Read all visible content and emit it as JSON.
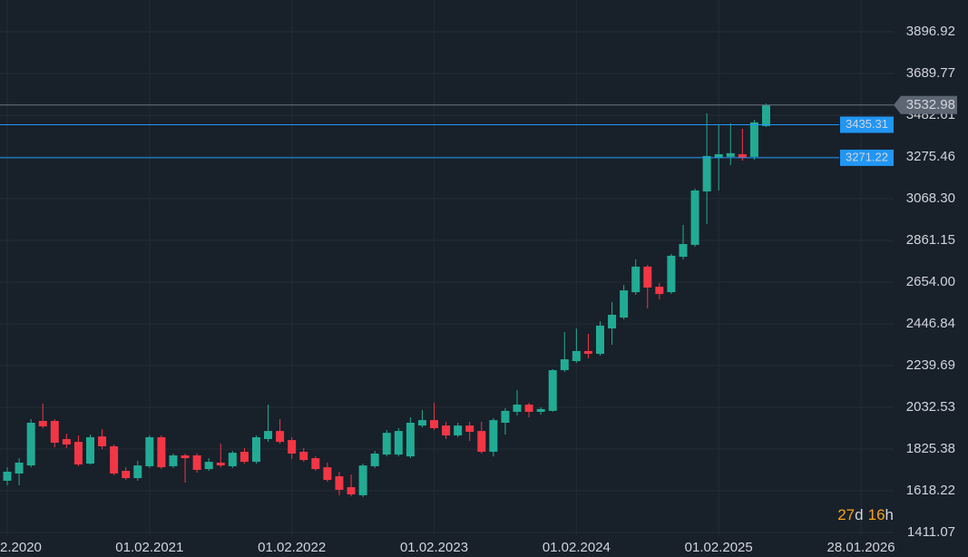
{
  "chart_data": {
    "type": "candlestick",
    "up_color": "#22ab94",
    "down_color": "#f23645",
    "open": [
      1668,
      1704,
      1744,
      1965,
      1965,
      1875,
      1861,
      1753,
      1888,
      1839,
      1717,
      1681,
      1740,
      1884,
      1740,
      1794,
      1794,
      1726,
      1758,
      1740,
      1812,
      1762,
      1875,
      1915,
      1870,
      1812,
      1780,
      1735,
      1690,
      1636,
      1596,
      1740,
      1798,
      1798,
      1789,
      1942,
      1969,
      1942,
      1893,
      1942,
      1915,
      1812,
      1956,
      2010,
      2046,
      2010,
      2015,
      2217,
      2262,
      2312,
      2298,
      2424,
      2478,
      2604,
      2731,
      2631,
      2604,
      2780,
      2839,
      3104,
      3271,
      3276,
      3289,
      3276,
      3429
    ],
    "high": [
      1735,
      1780,
      1974,
      2051,
      1974,
      1902,
      1893,
      1897,
      1924,
      1848,
      1735,
      1767,
      1893,
      1893,
      1803,
      1803,
      1803,
      1780,
      1852,
      1816,
      1830,
      1893,
      2046,
      1974,
      1884,
      1830,
      1789,
      1758,
      1713,
      1699,
      1753,
      1816,
      1920,
      1929,
      1983,
      2019,
      2055,
      1961,
      1956,
      1961,
      1961,
      1979,
      2028,
      2118,
      2055,
      2033,
      2222,
      2406,
      2424,
      2397,
      2460,
      2555,
      2640,
      2767,
      2740,
      2649,
      2794,
      2938,
      3118,
      3492,
      3433,
      3442,
      3415,
      3460,
      3541
    ],
    "low": [
      1645,
      1645,
      1735,
      1929,
      1834,
      1830,
      1740,
      1749,
      1825,
      1695,
      1672,
      1668,
      1731,
      1726,
      1731,
      1659,
      1708,
      1717,
      1735,
      1731,
      1753,
      1753,
      1861,
      1852,
      1776,
      1762,
      1717,
      1663,
      1596,
      1591,
      1587,
      1731,
      1789,
      1789,
      1780,
      1933,
      1920,
      1875,
      1884,
      1866,
      1803,
      1789,
      1897,
      1992,
      1983,
      1996,
      2010,
      2208,
      2253,
      2276,
      2289,
      2343,
      2469,
      2591,
      2524,
      2568,
      2595,
      2767,
      2830,
      2942,
      3109,
      3235,
      3257,
      3262,
      3424
    ],
    "close": [
      1713,
      1758,
      1956,
      1938,
      1857,
      1848,
      1749,
      1884,
      1839,
      1704,
      1681,
      1744,
      1884,
      1735,
      1794,
      1780,
      1722,
      1762,
      1744,
      1807,
      1762,
      1884,
      1915,
      1861,
      1803,
      1771,
      1726,
      1672,
      1623,
      1600,
      1744,
      1803,
      1906,
      1915,
      1956,
      1969,
      1929,
      1893,
      1942,
      1911,
      1812,
      1969,
      2015,
      2046,
      2010,
      2024,
      2217,
      2271,
      2312,
      2298,
      2438,
      2492,
      2613,
      2731,
      2627,
      2595,
      2785,
      2843,
      3109,
      3280,
      3289,
      3294,
      3271,
      3447,
      3532.98
    ],
    "ylim": [
      1289.5,
      4054.5
    ],
    "yticks": [
      1411.07,
      1618.22,
      1825.38,
      2032.53,
      2239.69,
      2446.84,
      {
        "value": 2654.0,
        "label": "2654.00"
      },
      2861.15,
      {
        "value": 3068.3,
        "label": "3068.30"
      },
      3275.46,
      3482.61,
      3689.77,
      3896.92
    ],
    "xticks": [
      {
        "value": 0,
        "label": "2.2020"
      },
      {
        "value": 12,
        "label": "01.02.2021"
      },
      {
        "value": 24,
        "label": "01.02.2022"
      },
      {
        "value": 36,
        "label": "01.02.2023"
      },
      {
        "value": 48,
        "label": "01.02.2024"
      },
      {
        "value": 60,
        "label": "01.02.2025"
      },
      {
        "value": 72,
        "label": "28.01.2026"
      }
    ],
    "grid": true,
    "price_lines": [
      {
        "value": 3435.31,
        "color": "#2196f3"
      },
      {
        "value": 3271.22,
        "color": "#2196f3"
      }
    ],
    "last_price": {
      "value": 3532.98,
      "color": "#5d6673"
    },
    "countdown": [
      {
        "text": "27",
        "color": "#f7a21b"
      },
      {
        "text": "d",
        "color": "#d1d4dc"
      },
      {
        "text": "16",
        "color": "#f7a21b"
      },
      {
        "text": "h",
        "color": "#d1d4dc"
      }
    ]
  }
}
